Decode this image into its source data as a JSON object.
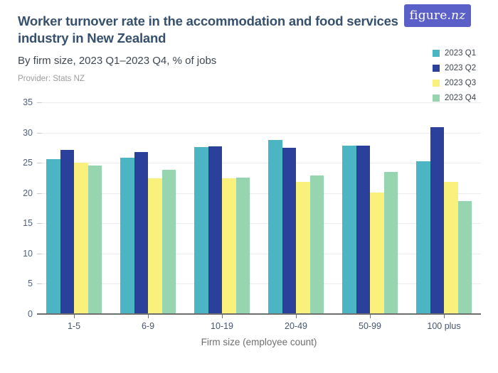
{
  "logo": {
    "text_main": "figure.",
    "text_nz": "nz",
    "bg_color": "#5b5fc8"
  },
  "header": {
    "title": "Worker turnover rate in the accommodation and food services industry in New Zealand",
    "subtitle": "By firm size, 2023 Q1–2023 Q4, % of jobs",
    "provider": "Provider: Stats NZ"
  },
  "chart_data": {
    "type": "bar",
    "title": "Worker turnover rate in the accommodation and food services industry in New Zealand",
    "subtitle": "By firm size, 2023 Q1–2023 Q4, % of jobs",
    "categories": [
      "1-5",
      "6-9",
      "10-19",
      "20-49",
      "50-99",
      "100 plus"
    ],
    "series": [
      {
        "name": "2023 Q1",
        "color": "#4cb5c3",
        "values": [
          25.6,
          25.8,
          27.6,
          28.8,
          27.8,
          25.2
        ]
      },
      {
        "name": "2023 Q2",
        "color": "#2a409b",
        "values": [
          27.1,
          26.8,
          27.7,
          27.5,
          27.8,
          30.9
        ]
      },
      {
        "name": "2023 Q3",
        "color": "#f9f17c",
        "values": [
          25.0,
          22.4,
          22.4,
          21.9,
          20.1,
          21.9
        ]
      },
      {
        "name": "2023 Q4",
        "color": "#97d5b1",
        "values": [
          24.6,
          23.9,
          22.6,
          22.9,
          23.5,
          18.7
        ]
      }
    ],
    "xlabel": "Firm size (employee count)",
    "ylabel": "",
    "ylim": [
      0,
      35
    ],
    "yticks": [
      0,
      5,
      10,
      15,
      20,
      25,
      30,
      35
    ],
    "grid": true,
    "legend_position": "top-right"
  }
}
